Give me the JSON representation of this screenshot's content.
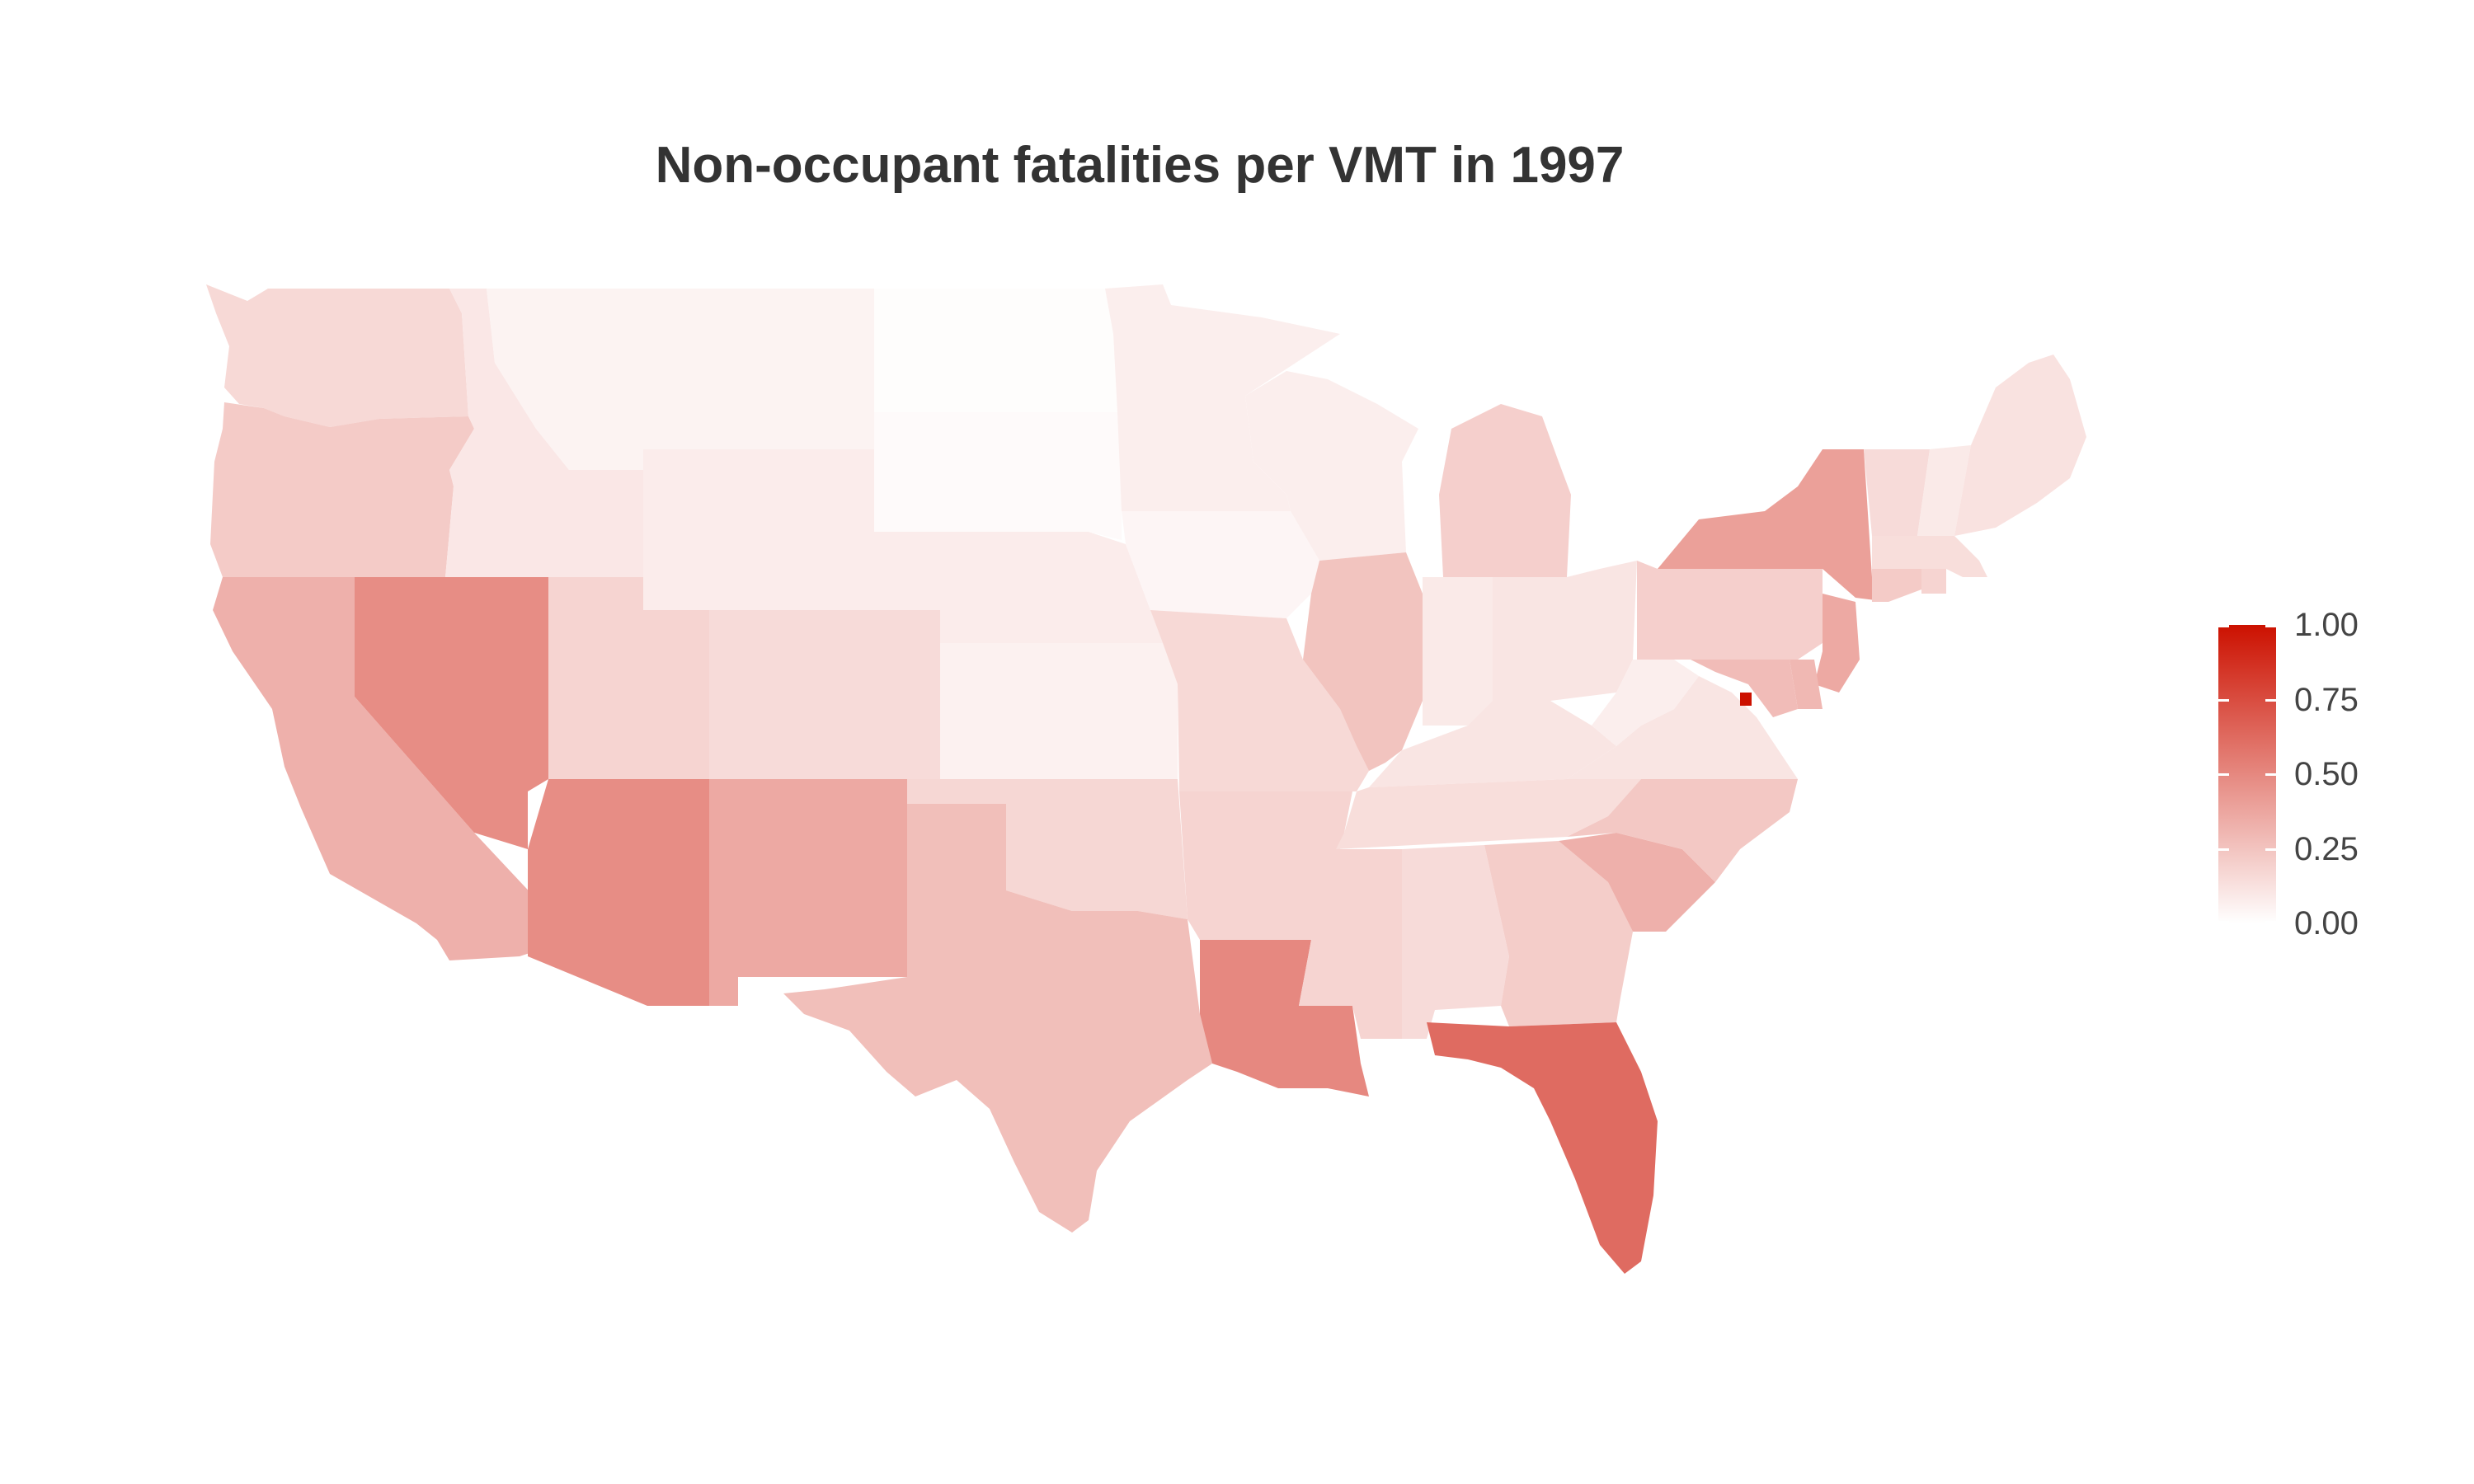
{
  "title": "Non-occupant fatalities per VMT in 1997",
  "colors": {
    "low": "#ffffff",
    "high": "#cc1100",
    "title": "#333333",
    "label": "#444444"
  },
  "legend": {
    "min": 0,
    "max": 1,
    "ticks": [
      {
        "value": 1.0,
        "label": "1.00"
      },
      {
        "value": 0.75,
        "label": "0.75"
      },
      {
        "value": 0.5,
        "label": "0.50"
      },
      {
        "value": 0.25,
        "label": "0.25"
      },
      {
        "value": 0.0,
        "label": "0.00"
      }
    ]
  },
  "states": {
    "WA": 0.16,
    "OR": 0.22,
    "CA": 0.33,
    "NV": 0.48,
    "ID": 0.1,
    "MT": 0.05,
    "WY": 0.08,
    "UT": 0.18,
    "CO": 0.15,
    "AZ": 0.48,
    "NM": 0.36,
    "ND": 0.01,
    "SD": 0.02,
    "NE": 0.08,
    "KS": 0.06,
    "OK": 0.17,
    "TX": 0.27,
    "MN": 0.07,
    "IA": 0.04,
    "MO": 0.16,
    "AR": 0.18,
    "LA": 0.5,
    "WI": 0.07,
    "IL": 0.25,
    "MI": 0.2,
    "IN": 0.09,
    "OH": 0.11,
    "KY": 0.11,
    "TN": 0.14,
    "MS": 0.18,
    "AL": 0.15,
    "GA": 0.21,
    "FL": 0.62,
    "SC": 0.33,
    "NC": 0.23,
    "VA": 0.11,
    "WV": 0.07,
    "PA": 0.2,
    "NY": 0.4,
    "VT": 0.15,
    "NH": 0.09,
    "ME": 0.12,
    "MA": 0.14,
    "RI": 0.18,
    "CT": 0.22,
    "NJ": 0.36,
    "DE": 0.3,
    "MD": 0.28,
    "DC": 1.0
  }
}
